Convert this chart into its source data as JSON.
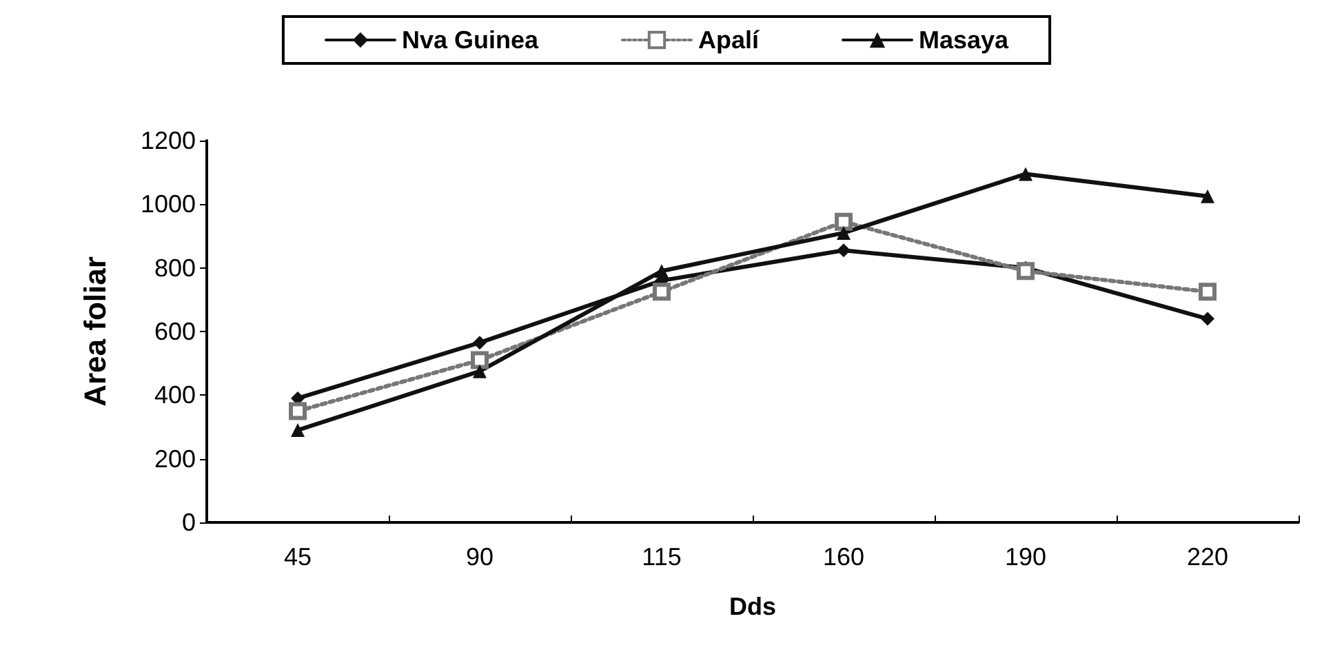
{
  "chart_data": {
    "type": "line",
    "xlabel": "Dds",
    "ylabel": "Area foliar",
    "categories": [
      "45",
      "90",
      "115",
      "160",
      "190",
      "220"
    ],
    "series": [
      {
        "name": "Nva Guinea",
        "color": "#111111",
        "marker": "diamond",
        "line_style": "solid",
        "values": [
          390,
          565,
          760,
          855,
          800,
          640
        ]
      },
      {
        "name": "Apalí",
        "color": "#777777",
        "marker": "square",
        "line_style": "dotted",
        "values": [
          350,
          510,
          725,
          945,
          790,
          725
        ]
      },
      {
        "name": "Masaya",
        "color": "#111111",
        "marker": "triangle",
        "line_style": "solid",
        "values": [
          290,
          475,
          790,
          910,
          1095,
          1025
        ]
      }
    ],
    "ylim": [
      0,
      1200
    ],
    "yticks": [
      0,
      200,
      400,
      600,
      800,
      1000,
      1200
    ],
    "grid": false,
    "legend": "top"
  }
}
